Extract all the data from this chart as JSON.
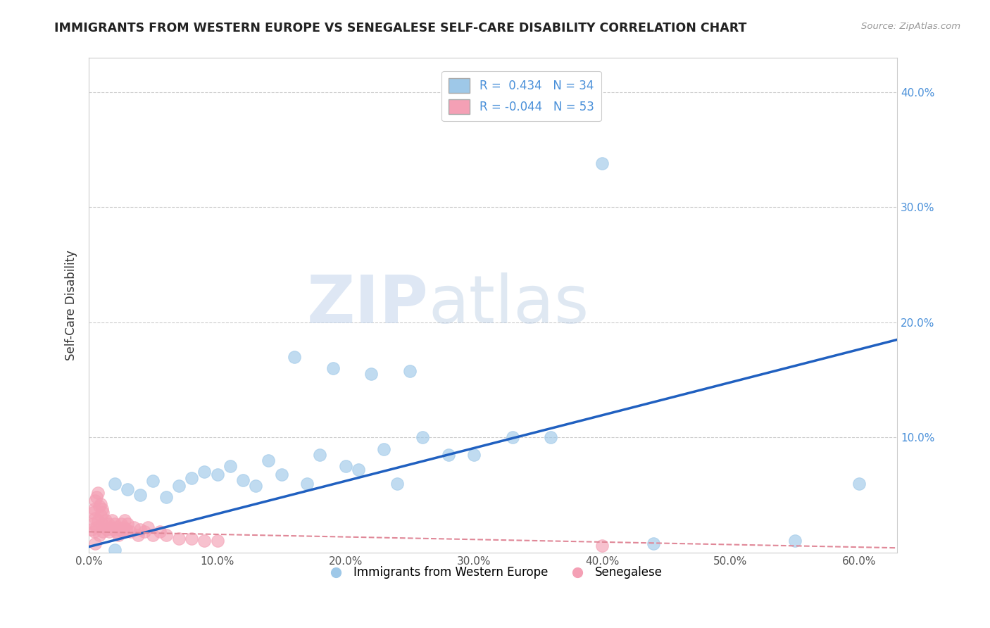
{
  "title": "IMMIGRANTS FROM WESTERN EUROPE VS SENEGALESE SELF-CARE DISABILITY CORRELATION CHART",
  "source": "Source: ZipAtlas.com",
  "ylabel_label": "Self-Care Disability",
  "legend_label1": "Immigrants from Western Europe",
  "legend_label2": "Senegalese",
  "r1": 0.434,
  "n1": 34,
  "r2": -0.044,
  "n2": 53,
  "xlim": [
    0.0,
    0.63
  ],
  "ylim": [
    0.0,
    0.43
  ],
  "xticks": [
    0.0,
    0.1,
    0.2,
    0.3,
    0.4,
    0.5,
    0.6
  ],
  "xtick_labels": [
    "0.0%",
    "10.0%",
    "20.0%",
    "30.0%",
    "40.0%",
    "50.0%",
    "60.0%"
  ],
  "yticks": [
    0.0,
    0.1,
    0.2,
    0.3,
    0.4
  ],
  "ytick_labels": [
    "",
    "10.0%",
    "20.0%",
    "30.0%",
    "40.0%"
  ],
  "color_blue": "#9ec8e8",
  "color_pink": "#f4a0b5",
  "line_color_blue": "#2060c0",
  "line_color_pink": "#e08898",
  "watermark_zip": "ZIP",
  "watermark_atlas": "atlas",
  "background": "#ffffff",
  "blue_points_x": [
    0.02,
    0.03,
    0.04,
    0.05,
    0.06,
    0.07,
    0.08,
    0.09,
    0.1,
    0.11,
    0.12,
    0.13,
    0.14,
    0.15,
    0.16,
    0.17,
    0.18,
    0.19,
    0.2,
    0.21,
    0.22,
    0.23,
    0.24,
    0.25,
    0.26,
    0.28,
    0.3,
    0.33,
    0.36,
    0.4,
    0.44,
    0.55,
    0.6,
    0.02
  ],
  "blue_points_y": [
    0.06,
    0.055,
    0.05,
    0.062,
    0.048,
    0.058,
    0.065,
    0.07,
    0.068,
    0.075,
    0.063,
    0.058,
    0.08,
    0.068,
    0.17,
    0.06,
    0.085,
    0.16,
    0.075,
    0.072,
    0.155,
    0.09,
    0.06,
    0.158,
    0.1,
    0.085,
    0.085,
    0.1,
    0.1,
    0.338,
    0.008,
    0.01,
    0.06,
    0.002
  ],
  "blue_line_x": [
    0.0,
    0.63
  ],
  "blue_line_y": [
    0.005,
    0.185
  ],
  "pink_line_x": [
    0.0,
    0.63
  ],
  "pink_line_y": [
    0.018,
    0.004
  ],
  "pink_points_x": [
    0.002,
    0.003,
    0.004,
    0.005,
    0.006,
    0.007,
    0.008,
    0.009,
    0.01,
    0.011,
    0.012,
    0.013,
    0.014,
    0.015,
    0.016,
    0.017,
    0.018,
    0.019,
    0.02,
    0.021,
    0.022,
    0.023,
    0.024,
    0.025,
    0.026,
    0.027,
    0.028,
    0.029,
    0.03,
    0.032,
    0.035,
    0.038,
    0.04,
    0.043,
    0.046,
    0.05,
    0.055,
    0.06,
    0.07,
    0.08,
    0.09,
    0.1,
    0.003,
    0.004,
    0.005,
    0.006,
    0.007,
    0.008,
    0.009,
    0.01,
    0.011,
    0.4,
    0.005
  ],
  "pink_points_y": [
    0.02,
    0.025,
    0.018,
    0.03,
    0.022,
    0.028,
    0.015,
    0.032,
    0.025,
    0.018,
    0.022,
    0.028,
    0.02,
    0.025,
    0.018,
    0.022,
    0.028,
    0.02,
    0.025,
    0.018,
    0.022,
    0.015,
    0.02,
    0.025,
    0.018,
    0.022,
    0.028,
    0.02,
    0.025,
    0.018,
    0.022,
    0.015,
    0.02,
    0.018,
    0.022,
    0.015,
    0.018,
    0.015,
    0.012,
    0.012,
    0.01,
    0.01,
    0.035,
    0.038,
    0.045,
    0.048,
    0.052,
    0.04,
    0.042,
    0.038,
    0.035,
    0.006,
    0.008
  ]
}
